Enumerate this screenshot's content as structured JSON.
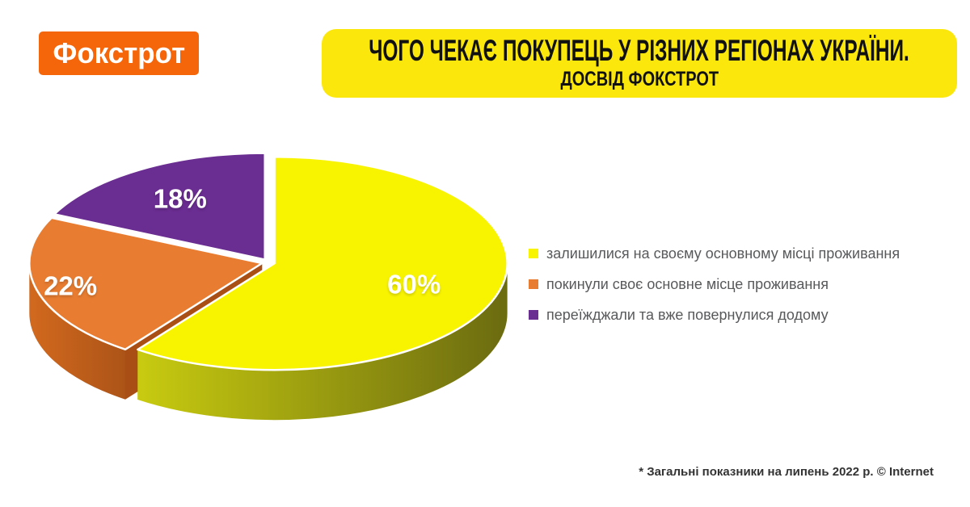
{
  "brand": {
    "logo_text": "Фокстрот",
    "logo_bg": "#F5660A"
  },
  "header": {
    "title_line1": "ЧОГО ЧЕКАЄ ПОКУПЕЦЬ У РІЗНИХ РЕГІОНАХ УКРАЇНИ.",
    "title_line2": "ДОСВІД ФОКСТРОТ",
    "banner_bg": "#FBE70B",
    "title_color": "#111111"
  },
  "chart_data": {
    "type": "pie",
    "style": "3d-exploded",
    "start_angle_deg": -90,
    "direction": "clockwise",
    "legend_position": "right",
    "value_label_color": "#FFFFFF",
    "slices": [
      {
        "label": "залишилися на своєму основному місці проживання",
        "value": 60,
        "value_label": "60%",
        "color": "#F8F400",
        "side_color_from": "#C8CB10",
        "side_color_to": "#6B6B10",
        "cut_color": "#B9BC10"
      },
      {
        "label": "покинули своє основне місце проживання",
        "value": 22,
        "value_label": "22%",
        "color": "#E87D31",
        "side_color_from": "#D2691E",
        "side_color_to": "#AC5418",
        "cut_color": "#A94F15"
      },
      {
        "label": "переїжджали та вже повернулися додому",
        "value": 18,
        "value_label": "18%",
        "color": "#6A2D91"
      }
    ]
  },
  "footnote": {
    "text": "* Загальні показники на липень 2022 р. © Internet"
  }
}
